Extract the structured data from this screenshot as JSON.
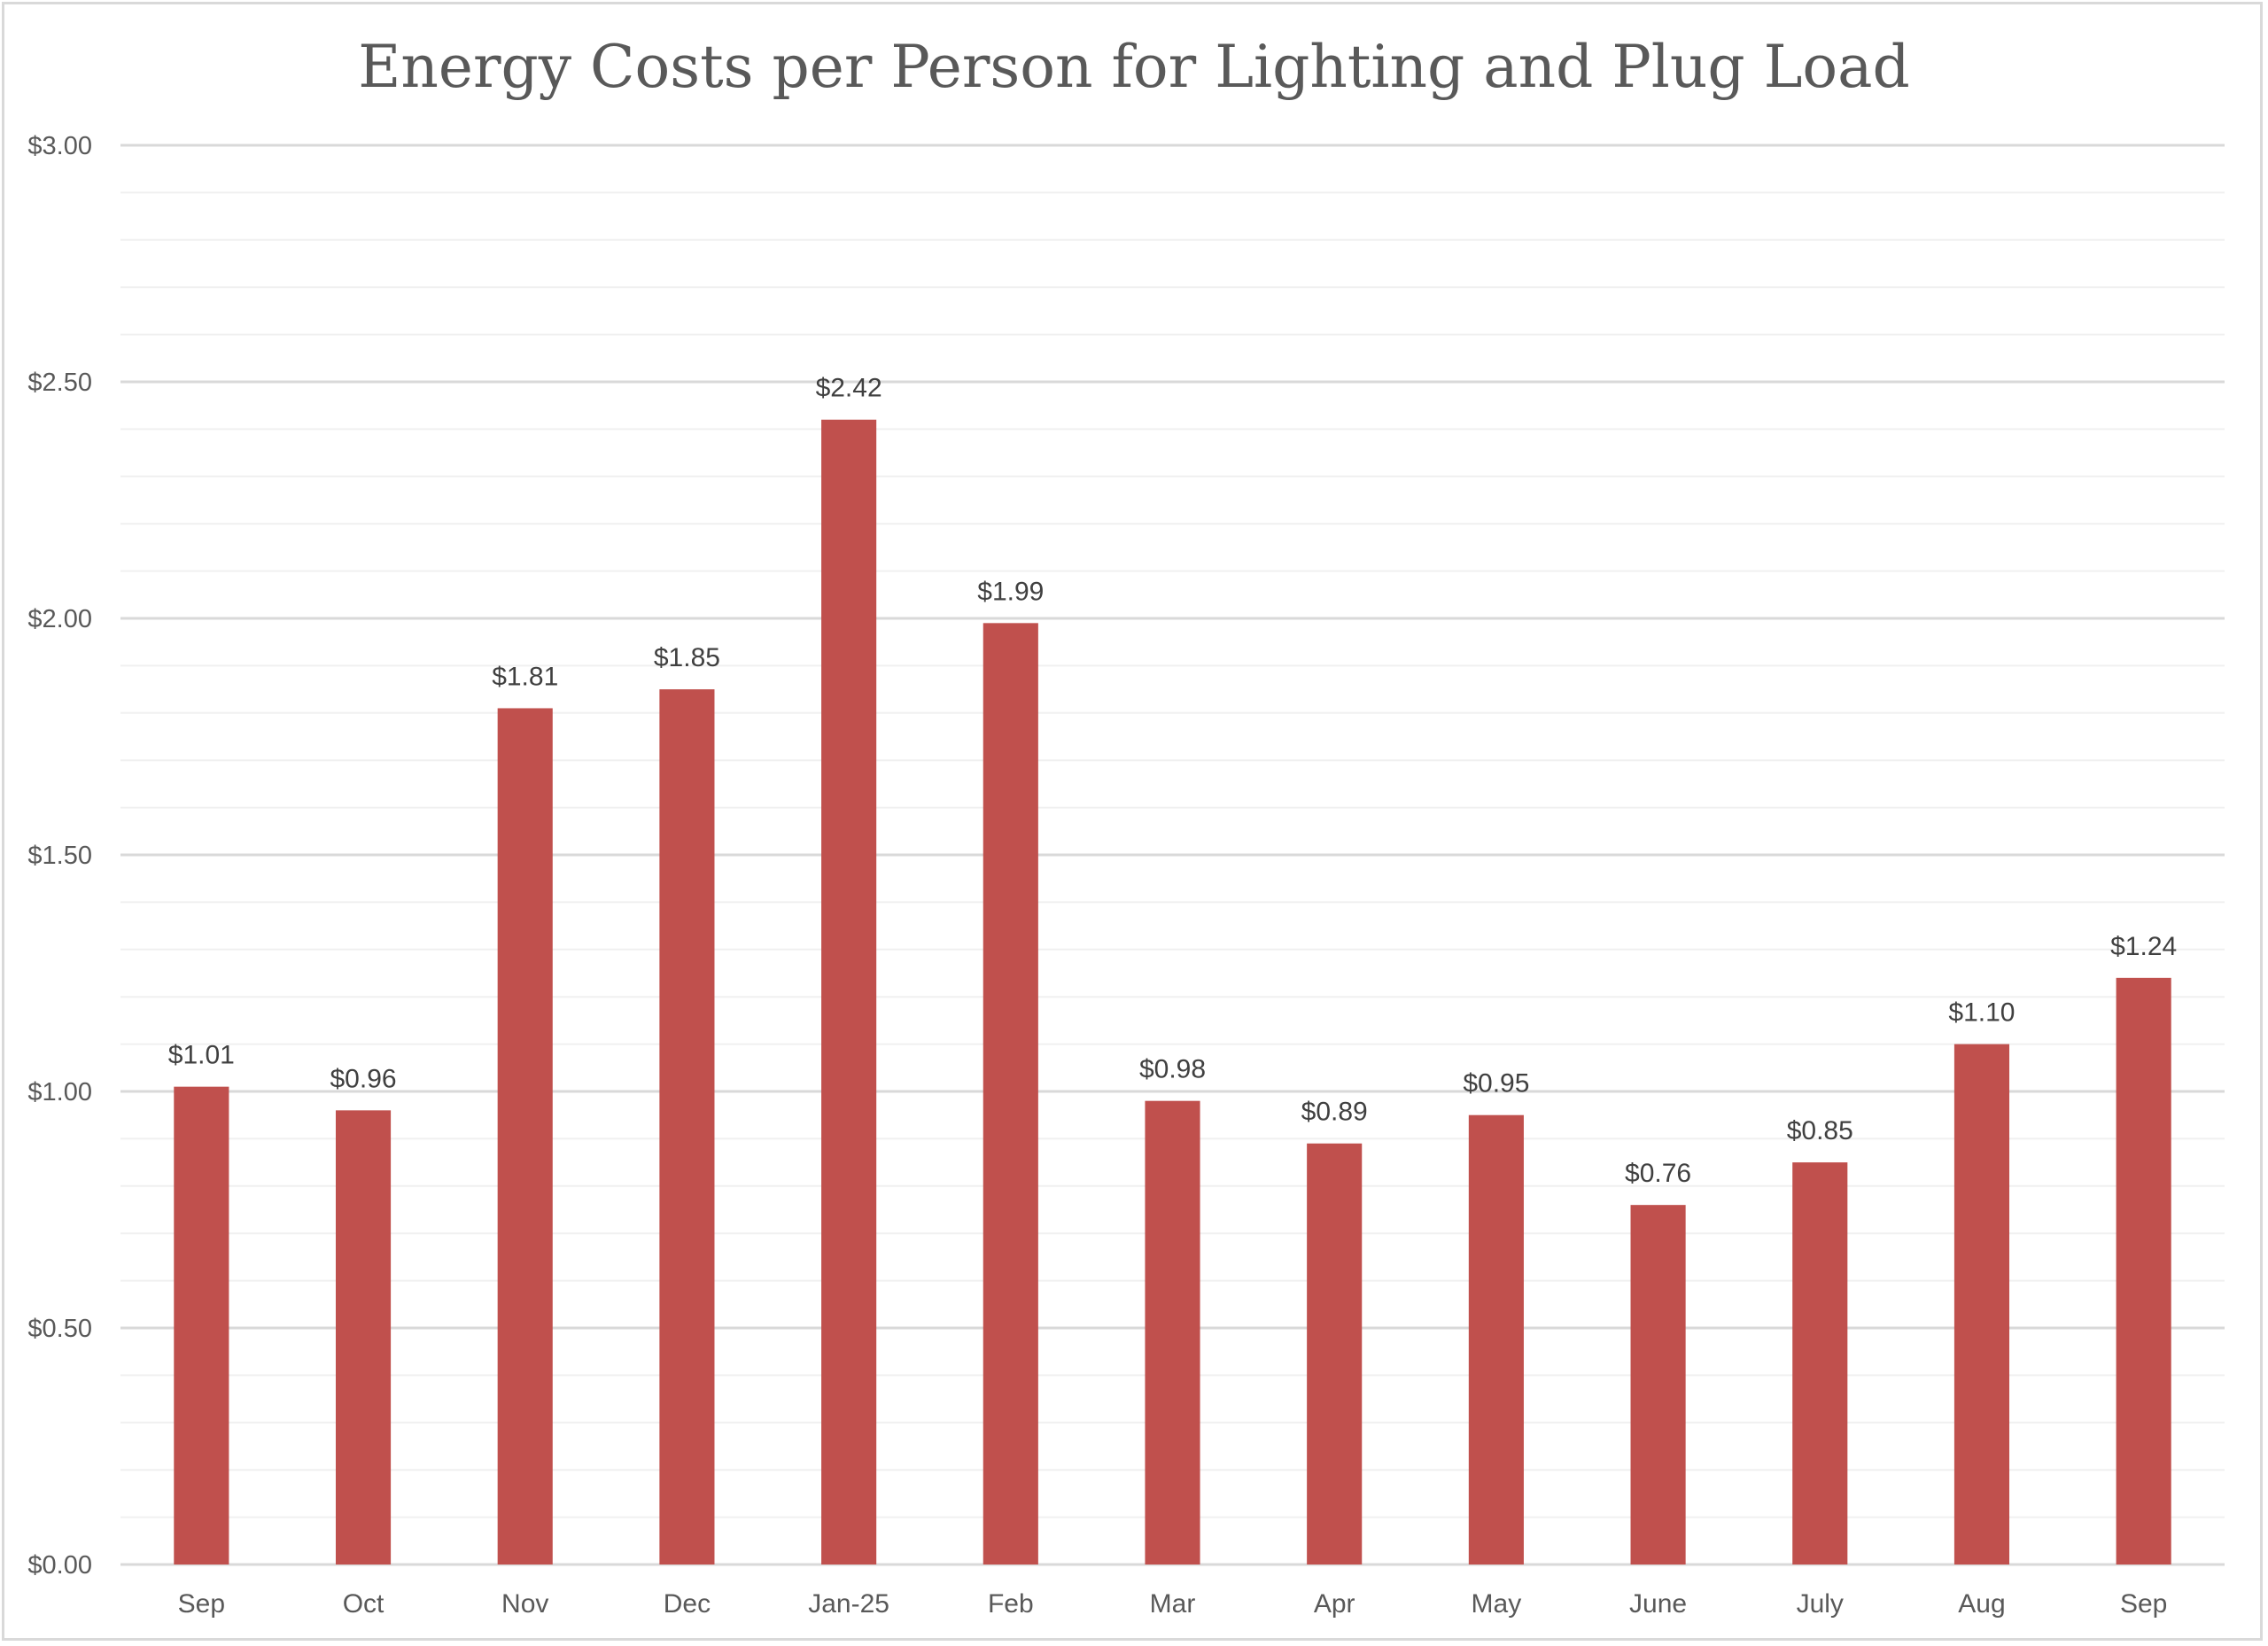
{
  "chart_data": {
    "type": "bar",
    "title": "Energy Costs per Person for Lighting and Plug Load",
    "xlabel": "",
    "ylabel": "",
    "categories": [
      "Sep",
      "Oct",
      "Nov",
      "Dec",
      "Jan-25",
      "Feb",
      "Mar",
      "Apr",
      "May",
      "June",
      "July",
      "Aug",
      "Sep"
    ],
    "values": [
      1.01,
      0.96,
      1.81,
      1.85,
      2.42,
      1.99,
      0.98,
      0.89,
      0.95,
      0.76,
      0.85,
      1.1,
      1.24
    ],
    "data_labels": [
      "$1.01",
      "$0.96",
      "$1.81",
      "$1.85",
      "$2.42",
      "$1.99",
      "$0.98",
      "$0.89",
      "$0.95",
      "$0.76",
      "$0.85",
      "$1.10",
      "$1.24"
    ],
    "ylim": [
      0,
      3.0
    ],
    "y_ticks": [
      0,
      0.5,
      1.0,
      1.5,
      2.0,
      2.5,
      3.0
    ],
    "y_tick_labels": [
      "$0.00",
      "$0.50",
      "$1.00",
      "$1.50",
      "$2.00",
      "$2.50",
      "$3.00"
    ],
    "minor_gridline_step": 0.1,
    "grid": true,
    "legend": "none",
    "bar_color": "#C0504D"
  }
}
